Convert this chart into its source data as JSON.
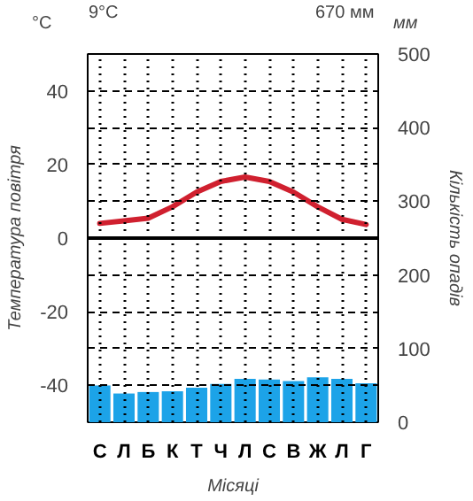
{
  "chart_data": {
    "type": "bar",
    "categories": [
      "С",
      "Л",
      "Б",
      "К",
      "Т",
      "Ч",
      "Л",
      "С",
      "В",
      "Ж",
      "Л",
      "Г"
    ],
    "xlabel": "Місяці",
    "ylabel": "Температура повітря",
    "y2label": "Кількість опадів",
    "annotations": [
      "°C",
      "9°C",
      "670 мм",
      "мм"
    ],
    "series": [
      {
        "axis": "y2",
        "color": "#1ca3e8",
        "values": [
          50,
          39,
          41,
          42,
          47,
          52,
          59,
          58,
          56,
          61,
          59,
          53
        ]
      },
      {
        "type": "line",
        "color": "#d0202f",
        "values": [
          4.0,
          4.7,
          5.4,
          8.5,
          12.5,
          15.4,
          16.6,
          15.4,
          12.5,
          8.5,
          5.1,
          3.7
        ]
      }
    ],
    "ylim": [
      -50,
      50
    ],
    "yticks": [
      {
        "value": -50,
        "label": null
      },
      -40,
      {
        "value": -30,
        "label": null
      },
      -20,
      {
        "value": -10,
        "label": null
      },
      0,
      {
        "value": 10,
        "label": null
      },
      20,
      {
        "value": 30,
        "label": null
      },
      40,
      {
        "value": 50,
        "label": null
      }
    ],
    "y2lim": [
      0,
      500
    ],
    "y2ticks": [
      0,
      100,
      200,
      300,
      400,
      500
    ],
    "ref_lines": [
      {
        "axis": "y",
        "value": 0,
        "color": "#000000"
      }
    ],
    "grid": true,
    "marker": "none",
    "line_style": "solid"
  }
}
